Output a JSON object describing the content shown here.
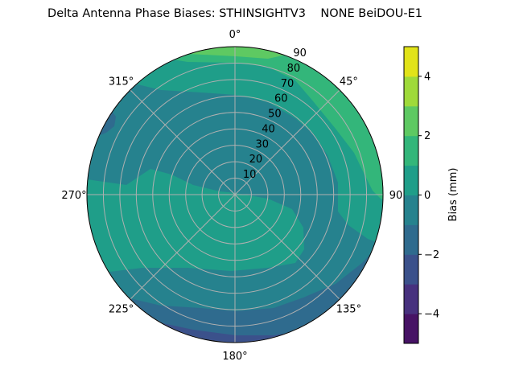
{
  "chart_data": {
    "type": "polar-contour",
    "title": "Delta Antenna Phase Biases: STHINSIGHTV3    NONE BeiDOU-E1",
    "theta_direction": "clockwise",
    "theta_zero": "top",
    "theta_ticks": [
      0,
      45,
      90,
      135,
      180,
      225,
      270,
      315
    ],
    "theta_tick_labels": [
      "0°",
      "45°",
      "90",
      "135°",
      "180°",
      "225°",
      "270°",
      "315°"
    ],
    "r_ticks": [
      10,
      20,
      30,
      40,
      50,
      60,
      70,
      80,
      90
    ],
    "r_tick_labels": [
      "10",
      "20",
      "30",
      "40",
      "50",
      "60",
      "70",
      "80",
      "90"
    ],
    "rlim": [
      0,
      90
    ],
    "grid": true,
    "colormap": "viridis",
    "levels": [
      -5,
      -4,
      -3,
      -2,
      -1,
      0,
      1,
      2,
      3,
      4,
      5
    ],
    "level_colors": [
      "#471365",
      "#47317e",
      "#3b518b",
      "#2f6b8e",
      "#26828e",
      "#1f9e89",
      "#33b67a",
      "#5ec962",
      "#9fda3a",
      "#e1e319"
    ],
    "colorbar": {
      "label": "Bias (mm)",
      "ticks": [
        -4,
        -2,
        0,
        2,
        4
      ],
      "tick_labels": [
        "−4",
        "−2",
        "0",
        "2",
        "4"
      ],
      "range": [
        -5,
        5
      ]
    },
    "regions": [
      {
        "name": "center-east-band",
        "band": [
          -1,
          0
        ]
      },
      {
        "name": "southwest-center",
        "band": [
          0,
          1
        ]
      },
      {
        "name": "northeast-rim",
        "band": [
          0,
          1
        ]
      },
      {
        "name": "northeast-outer",
        "band": [
          1,
          2
        ]
      },
      {
        "name": "north-edge",
        "band": [
          2,
          3
        ]
      },
      {
        "name": "west-northwest-patch",
        "band": [
          -2,
          -1
        ]
      },
      {
        "name": "south-rim",
        "band": [
          -2,
          -1
        ]
      },
      {
        "name": "south-edge",
        "band": [
          -3,
          -2
        ]
      }
    ]
  }
}
